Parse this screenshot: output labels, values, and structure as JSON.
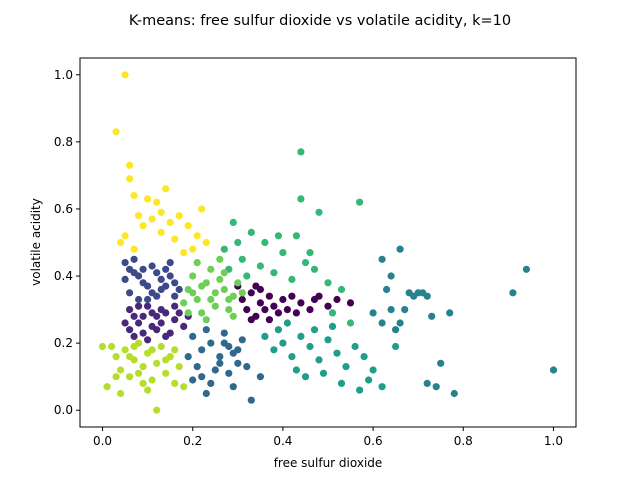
{
  "chart_data": {
    "type": "scatter",
    "title": "K-means: free sulfur dioxide vs volatile acidity, k=10",
    "xlabel": "free sulfur dioxide",
    "ylabel": "volatile acidity",
    "xlim": [
      -0.05,
      1.05
    ],
    "ylim": [
      -0.05,
      1.05
    ],
    "xticks": [
      "0.0",
      "0.2",
      "0.4",
      "0.6",
      "0.8",
      "1.0"
    ],
    "yticks": [
      "0.0",
      "0.2",
      "0.4",
      "0.6",
      "0.8",
      "1.0"
    ],
    "grid": false,
    "legend": "none",
    "clusters": [
      {
        "color": "#440154",
        "points": [
          [
            0.31,
            0.33
          ],
          [
            0.32,
            0.3
          ],
          [
            0.33,
            0.35
          ],
          [
            0.34,
            0.28
          ],
          [
            0.35,
            0.32
          ],
          [
            0.36,
            0.3
          ],
          [
            0.37,
            0.34
          ],
          [
            0.38,
            0.31
          ],
          [
            0.39,
            0.29
          ],
          [
            0.4,
            0.33
          ],
          [
            0.33,
            0.27
          ],
          [
            0.35,
            0.36
          ],
          [
            0.37,
            0.27
          ],
          [
            0.41,
            0.3
          ],
          [
            0.42,
            0.34
          ],
          [
            0.44,
            0.32
          ],
          [
            0.46,
            0.3
          ],
          [
            0.48,
            0.34
          ],
          [
            0.5,
            0.31
          ],
          [
            0.52,
            0.33
          ],
          [
            0.55,
            0.32
          ],
          [
            0.3,
            0.37
          ],
          [
            0.34,
            0.37
          ],
          [
            0.43,
            0.29
          ],
          [
            0.47,
            0.33
          ]
        ]
      },
      {
        "color": "#482878",
        "points": [
          [
            0.06,
            0.3
          ],
          [
            0.08,
            0.26
          ],
          [
            0.1,
            0.31
          ],
          [
            0.12,
            0.24
          ],
          [
            0.14,
            0.29
          ],
          [
            0.16,
            0.27
          ],
          [
            0.07,
            0.22
          ],
          [
            0.09,
            0.28
          ],
          [
            0.11,
            0.25
          ],
          [
            0.13,
            0.3
          ],
          [
            0.15,
            0.23
          ],
          [
            0.17,
            0.29
          ],
          [
            0.05,
            0.26
          ],
          [
            0.1,
            0.21
          ],
          [
            0.18,
            0.25
          ],
          [
            0.12,
            0.28
          ],
          [
            0.08,
            0.31
          ],
          [
            0.14,
            0.22
          ],
          [
            0.16,
            0.31
          ],
          [
            0.06,
            0.24
          ],
          [
            0.19,
            0.28
          ],
          [
            0.11,
            0.29
          ],
          [
            0.09,
            0.23
          ],
          [
            0.13,
            0.26
          ],
          [
            0.07,
            0.28
          ]
        ]
      },
      {
        "color": "#3e4989",
        "points": [
          [
            0.05,
            0.44
          ],
          [
            0.07,
            0.41
          ],
          [
            0.09,
            0.38
          ],
          [
            0.11,
            0.43
          ],
          [
            0.13,
            0.36
          ],
          [
            0.15,
            0.4
          ],
          [
            0.06,
            0.35
          ],
          [
            0.08,
            0.33
          ],
          [
            0.1,
            0.37
          ],
          [
            0.12,
            0.34
          ],
          [
            0.14,
            0.42
          ],
          [
            0.16,
            0.38
          ],
          [
            0.05,
            0.39
          ],
          [
            0.07,
            0.45
          ],
          [
            0.09,
            0.42
          ],
          [
            0.11,
            0.35
          ],
          [
            0.13,
            0.39
          ],
          [
            0.15,
            0.44
          ],
          [
            0.17,
            0.36
          ],
          [
            0.08,
            0.4
          ],
          [
            0.12,
            0.41
          ],
          [
            0.06,
            0.42
          ],
          [
            0.1,
            0.33
          ],
          [
            0.14,
            0.37
          ],
          [
            0.16,
            0.34
          ]
        ]
      },
      {
        "color": "#31688e",
        "points": [
          [
            0.2,
            0.22
          ],
          [
            0.22,
            0.18
          ],
          [
            0.24,
            0.2
          ],
          [
            0.26,
            0.16
          ],
          [
            0.28,
            0.19
          ],
          [
            0.3,
            0.14
          ],
          [
            0.21,
            0.13
          ],
          [
            0.23,
            0.24
          ],
          [
            0.25,
            0.12
          ],
          [
            0.27,
            0.23
          ],
          [
            0.29,
            0.17
          ],
          [
            0.31,
            0.21
          ],
          [
            0.19,
            0.16
          ],
          [
            0.22,
            0.1
          ],
          [
            0.24,
            0.08
          ],
          [
            0.26,
            0.14
          ],
          [
            0.28,
            0.11
          ],
          [
            0.3,
            0.18
          ],
          [
            0.32,
            0.13
          ],
          [
            0.2,
            0.09
          ],
          [
            0.23,
            0.05
          ],
          [
            0.29,
            0.07
          ],
          [
            0.33,
            0.03
          ],
          [
            0.35,
            0.1
          ],
          [
            0.27,
            0.2
          ]
        ]
      },
      {
        "color": "#26828e",
        "points": [
          [
            0.62,
            0.26
          ],
          [
            0.64,
            0.3
          ],
          [
            0.66,
            0.26
          ],
          [
            0.68,
            0.35
          ],
          [
            0.7,
            0.35
          ],
          [
            0.72,
            0.34
          ],
          [
            0.66,
            0.48
          ],
          [
            0.62,
            0.45
          ],
          [
            0.78,
            0.05
          ],
          [
            0.72,
            0.08
          ],
          [
            0.74,
            0.07
          ],
          [
            0.75,
            0.14
          ],
          [
            0.77,
            0.29
          ],
          [
            0.65,
            0.24
          ],
          [
            0.94,
            0.42
          ],
          [
            0.91,
            0.35
          ],
          [
            1.0,
            0.12
          ],
          [
            0.69,
            0.34
          ],
          [
            0.71,
            0.35
          ],
          [
            0.6,
            0.29
          ],
          [
            0.63,
            0.36
          ],
          [
            0.67,
            0.3
          ],
          [
            0.73,
            0.28
          ],
          [
            0.64,
            0.4
          ]
        ]
      },
      {
        "color": "#1f9e89",
        "points": [
          [
            0.36,
            0.22
          ],
          [
            0.38,
            0.18
          ],
          [
            0.4,
            0.2
          ],
          [
            0.42,
            0.16
          ],
          [
            0.44,
            0.22
          ],
          [
            0.46,
            0.19
          ],
          [
            0.48,
            0.15
          ],
          [
            0.5,
            0.21
          ],
          [
            0.52,
            0.17
          ],
          [
            0.54,
            0.13
          ],
          [
            0.56,
            0.19
          ],
          [
            0.58,
            0.16
          ],
          [
            0.6,
            0.12
          ],
          [
            0.39,
            0.24
          ],
          [
            0.43,
            0.12
          ],
          [
            0.45,
            0.1
          ],
          [
            0.47,
            0.24
          ],
          [
            0.49,
            0.11
          ],
          [
            0.53,
            0.08
          ],
          [
            0.57,
            0.06
          ],
          [
            0.59,
            0.09
          ],
          [
            0.62,
            0.07
          ],
          [
            0.65,
            0.19
          ],
          [
            0.41,
            0.26
          ],
          [
            0.51,
            0.25
          ]
        ]
      },
      {
        "color": "#35b779",
        "points": [
          [
            0.29,
            0.56
          ],
          [
            0.33,
            0.53
          ],
          [
            0.36,
            0.5
          ],
          [
            0.4,
            0.47
          ],
          [
            0.43,
            0.52
          ],
          [
            0.44,
            0.77
          ],
          [
            0.44,
            0.63
          ],
          [
            0.48,
            0.59
          ],
          [
            0.57,
            0.62
          ],
          [
            0.27,
            0.48
          ],
          [
            0.31,
            0.45
          ],
          [
            0.35,
            0.43
          ],
          [
            0.38,
            0.41
          ],
          [
            0.42,
            0.39
          ],
          [
            0.45,
            0.44
          ],
          [
            0.47,
            0.42
          ],
          [
            0.5,
            0.38
          ],
          [
            0.53,
            0.36
          ],
          [
            0.51,
            0.29
          ],
          [
            0.55,
            0.26
          ],
          [
            0.32,
            0.4
          ],
          [
            0.3,
            0.5
          ],
          [
            0.39,
            0.52
          ],
          [
            0.46,
            0.47
          ],
          [
            0.28,
            0.42
          ]
        ]
      },
      {
        "color": "#6ece58",
        "points": [
          [
            0.19,
            0.36
          ],
          [
            0.21,
            0.33
          ],
          [
            0.23,
            0.38
          ],
          [
            0.25,
            0.31
          ],
          [
            0.27,
            0.36
          ],
          [
            0.29,
            0.34
          ],
          [
            0.2,
            0.4
          ],
          [
            0.22,
            0.29
          ],
          [
            0.24,
            0.42
          ],
          [
            0.26,
            0.39
          ],
          [
            0.28,
            0.3
          ],
          [
            0.3,
            0.38
          ],
          [
            0.18,
            0.32
          ],
          [
            0.21,
            0.44
          ],
          [
            0.23,
            0.27
          ],
          [
            0.25,
            0.35
          ],
          [
            0.27,
            0.41
          ],
          [
            0.29,
            0.28
          ],
          [
            0.19,
            0.29
          ],
          [
            0.24,
            0.33
          ],
          [
            0.26,
            0.45
          ],
          [
            0.22,
            0.37
          ],
          [
            0.28,
            0.33
          ],
          [
            0.2,
            0.35
          ],
          [
            0.31,
            0.35
          ]
        ]
      },
      {
        "color": "#b5de2b",
        "points": [
          [
            0.0,
            0.19
          ],
          [
            0.02,
            0.19
          ],
          [
            0.01,
            0.07
          ],
          [
            0.03,
            0.16
          ],
          [
            0.04,
            0.12
          ],
          [
            0.05,
            0.18
          ],
          [
            0.06,
            0.1
          ],
          [
            0.07,
            0.15
          ],
          [
            0.08,
            0.2
          ],
          [
            0.09,
            0.13
          ],
          [
            0.1,
            0.17
          ],
          [
            0.11,
            0.09
          ],
          [
            0.12,
            0.14
          ],
          [
            0.13,
            0.19
          ],
          [
            0.14,
            0.11
          ],
          [
            0.15,
            0.16
          ],
          [
            0.16,
            0.08
          ],
          [
            0.17,
            0.13
          ],
          [
            0.06,
            0.16
          ],
          [
            0.08,
            0.11
          ],
          [
            0.1,
            0.06
          ],
          [
            0.12,
            0.0
          ],
          [
            0.04,
            0.05
          ],
          [
            0.07,
            0.19
          ],
          [
            0.11,
            0.18
          ],
          [
            0.18,
            0.07
          ],
          [
            0.03,
            0.1
          ],
          [
            0.14,
            0.15
          ],
          [
            0.09,
            0.08
          ],
          [
            0.16,
            0.18
          ]
        ]
      },
      {
        "color": "#fde725",
        "points": [
          [
            0.05,
            1.0
          ],
          [
            0.03,
            0.83
          ],
          [
            0.06,
            0.73
          ],
          [
            0.06,
            0.69
          ],
          [
            0.07,
            0.64
          ],
          [
            0.12,
            0.62
          ],
          [
            0.14,
            0.66
          ],
          [
            0.1,
            0.63
          ],
          [
            0.08,
            0.58
          ],
          [
            0.11,
            0.57
          ],
          [
            0.13,
            0.59
          ],
          [
            0.15,
            0.56
          ],
          [
            0.17,
            0.58
          ],
          [
            0.19,
            0.55
          ],
          [
            0.21,
            0.52
          ],
          [
            0.23,
            0.5
          ],
          [
            0.05,
            0.52
          ],
          [
            0.07,
            0.48
          ],
          [
            0.09,
            0.55
          ],
          [
            0.16,
            0.51
          ],
          [
            0.18,
            0.47
          ],
          [
            0.22,
            0.6
          ],
          [
            0.2,
            0.48
          ],
          [
            0.04,
            0.5
          ],
          [
            0.13,
            0.53
          ]
        ]
      }
    ]
  }
}
